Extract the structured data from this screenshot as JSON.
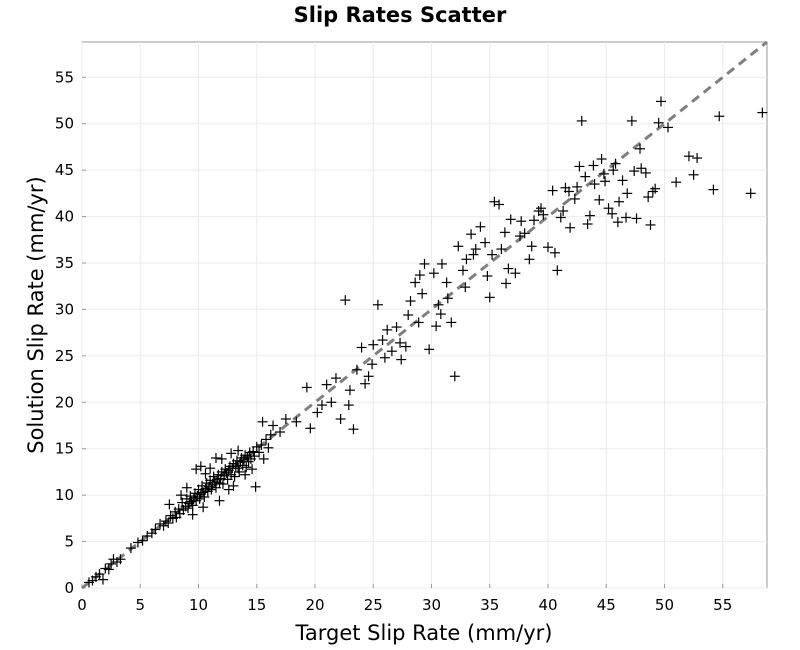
{
  "chart_data": {
    "type": "scatter",
    "title": "Slip Rates Scatter",
    "xlabel": "Target Slip Rate (mm/yr)",
    "ylabel": "Solution Slip Rate (mm/yr)",
    "xlim": [
      0,
      58.8
    ],
    "ylim": [
      0,
      58.8
    ],
    "xticks": [
      "0",
      "5",
      "10",
      "15",
      "20",
      "25",
      "30",
      "35",
      "40",
      "45",
      "50",
      "55"
    ],
    "yticks": [
      "0",
      "5",
      "10",
      "15",
      "20",
      "25",
      "30",
      "35",
      "40",
      "45",
      "50",
      "55"
    ],
    "grid": true,
    "marker": "plus",
    "marker_color": "#000000",
    "reference_line": {
      "style": "dashed",
      "color": "#7f7f7f",
      "from": [
        0,
        0
      ],
      "to": [
        58.8,
        58.8
      ]
    },
    "points": [
      [
        0.6,
        0.6
      ],
      [
        0.9,
        0.8
      ],
      [
        1.2,
        1.2
      ],
      [
        1.5,
        1.5
      ],
      [
        1.8,
        0.9
      ],
      [
        2.0,
        2.1
      ],
      [
        2.3,
        2.0
      ],
      [
        2.5,
        2.6
      ],
      [
        2.7,
        3.1
      ],
      [
        3.0,
        2.8
      ],
      [
        3.3,
        3.1
      ],
      [
        4.2,
        4.3
      ],
      [
        4.8,
        4.9
      ],
      [
        5.2,
        5.1
      ],
      [
        5.6,
        5.6
      ],
      [
        6.0,
        5.9
      ],
      [
        6.3,
        6.3
      ],
      [
        6.7,
        6.9
      ],
      [
        7.0,
        6.7
      ],
      [
        7.2,
        7.2
      ],
      [
        7.4,
        7.0
      ],
      [
        7.6,
        7.8
      ],
      [
        7.8,
        7.5
      ],
      [
        8.0,
        8.2
      ],
      [
        8.1,
        7.6
      ],
      [
        8.3,
        8.5
      ],
      [
        8.4,
        8.0
      ],
      [
        8.6,
        9.2
      ],
      [
        8.7,
        8.4
      ],
      [
        8.9,
        8.8
      ],
      [
        9.0,
        9.6
      ],
      [
        9.1,
        8.6
      ],
      [
        9.2,
        9.1
      ],
      [
        9.3,
        9.9
      ],
      [
        9.4,
        9.3
      ],
      [
        9.5,
        8.9
      ],
      [
        9.6,
        9.7
      ],
      [
        9.7,
        10.2
      ],
      [
        9.8,
        9.4
      ],
      [
        9.9,
        9.9
      ],
      [
        10.0,
        10.6
      ],
      [
        10.1,
        9.6
      ],
      [
        10.2,
        10.1
      ],
      [
        10.3,
        11.0
      ],
      [
        10.4,
        10.3
      ],
      [
        10.5,
        9.8
      ],
      [
        10.6,
        10.7
      ],
      [
        10.7,
        11.3
      ],
      [
        10.8,
        10.4
      ],
      [
        10.9,
        10.9
      ],
      [
        11.0,
        11.6
      ],
      [
        11.1,
        10.6
      ],
      [
        11.2,
        11.1
      ],
      [
        11.3,
        12.0
      ],
      [
        11.4,
        11.4
      ],
      [
        11.5,
        10.8
      ],
      [
        11.6,
        11.7
      ],
      [
        11.7,
        12.2
      ],
      [
        11.8,
        11.3
      ],
      [
        11.9,
        11.8
      ],
      [
        12.0,
        12.5
      ],
      [
        12.1,
        11.2
      ],
      [
        12.2,
        12.1
      ],
      [
        12.3,
        12.8
      ],
      [
        12.4,
        12.4
      ],
      [
        12.5,
        11.7
      ],
      [
        12.6,
        12.7
      ],
      [
        12.7,
        13.1
      ],
      [
        12.8,
        12.2
      ],
      [
        12.9,
        12.9
      ],
      [
        13.0,
        13.4
      ],
      [
        13.1,
        12.0
      ],
      [
        13.2,
        13.1
      ],
      [
        13.3,
        13.7
      ],
      [
        13.4,
        12.9
      ],
      [
        13.5,
        12.5
      ],
      [
        13.6,
        13.6
      ],
      [
        13.7,
        14.0
      ],
      [
        13.8,
        13.2
      ],
      [
        13.9,
        13.8
      ],
      [
        14.0,
        14.3
      ],
      [
        14.1,
        13.0
      ],
      [
        14.2,
        14.1
      ],
      [
        14.3,
        13.6
      ],
      [
        14.4,
        14.6
      ],
      [
        14.5,
        13.9
      ],
      [
        14.6,
        12.8
      ],
      [
        14.7,
        14.7
      ],
      [
        14.8,
        14.2
      ],
      [
        14.9,
        10.9
      ],
      [
        15.0,
        15.2
      ],
      [
        15.2,
        14.6
      ],
      [
        15.4,
        15.4
      ],
      [
        15.6,
        13.9
      ],
      [
        15.8,
        16.0
      ],
      [
        16.0,
        15.1
      ],
      [
        16.2,
        16.5
      ],
      [
        15.5,
        17.9
      ],
      [
        16.4,
        17.5
      ],
      [
        17.0,
        16.8
      ],
      [
        9.8,
        12.8
      ],
      [
        10.6,
        12.3
      ],
      [
        12.0,
        13.9
      ],
      [
        12.8,
        14.5
      ],
      [
        11.5,
        14.0
      ],
      [
        8.5,
        10.0
      ],
      [
        7.5,
        9.0
      ],
      [
        13.4,
        14.8
      ],
      [
        11.0,
        12.9
      ],
      [
        9.0,
        10.8
      ],
      [
        11.8,
        9.4
      ],
      [
        12.6,
        10.6
      ],
      [
        10.4,
        8.7
      ],
      [
        9.5,
        7.9
      ],
      [
        13.0,
        11.0
      ],
      [
        14.0,
        12.2
      ],
      [
        10.2,
        13.1
      ],
      [
        17.5,
        18.2
      ],
      [
        18.4,
        17.9
      ],
      [
        19.3,
        21.6
      ],
      [
        19.6,
        17.2
      ],
      [
        20.2,
        18.9
      ],
      [
        20.6,
        19.7
      ],
      [
        21.4,
        20.0
      ],
      [
        21.8,
        22.6
      ],
      [
        22.2,
        18.2
      ],
      [
        22.6,
        31.0
      ],
      [
        22.9,
        19.7
      ],
      [
        23.3,
        17.1
      ],
      [
        23.6,
        23.5
      ],
      [
        24.0,
        25.9
      ],
      [
        24.3,
        22.0
      ],
      [
        24.6,
        22.8
      ],
      [
        25.0,
        26.2
      ],
      [
        25.4,
        30.5
      ],
      [
        25.8,
        26.7
      ],
      [
        26.2,
        27.8
      ],
      [
        26.6,
        25.5
      ],
      [
        27.0,
        28.1
      ],
      [
        27.4,
        24.6
      ],
      [
        27.8,
        26.0
      ],
      [
        28.2,
        30.9
      ],
      [
        28.6,
        32.9
      ],
      [
        29.0,
        33.7
      ],
      [
        29.4,
        34.9
      ],
      [
        29.8,
        25.7
      ],
      [
        30.2,
        33.9
      ],
      [
        30.4,
        28.2
      ],
      [
        30.6,
        30.5
      ],
      [
        30.9,
        34.9
      ],
      [
        31.3,
        32.9
      ],
      [
        31.7,
        28.6
      ],
      [
        32.0,
        22.8
      ],
      [
        32.3,
        36.8
      ],
      [
        32.7,
        34.2
      ],
      [
        33.0,
        35.4
      ],
      [
        33.4,
        38.1
      ],
      [
        33.8,
        36.5
      ],
      [
        34.2,
        38.9
      ],
      [
        34.6,
        37.2
      ],
      [
        35.0,
        31.3
      ],
      [
        35.4,
        41.6
      ],
      [
        35.8,
        41.3
      ],
      [
        36.0,
        36.5
      ],
      [
        36.4,
        32.8
      ],
      [
        36.8,
        39.7
      ],
      [
        37.2,
        33.9
      ],
      [
        37.6,
        37.9
      ],
      [
        38.0,
        38.2
      ],
      [
        38.4,
        35.4
      ],
      [
        38.8,
        39.6
      ],
      [
        39.2,
        40.6
      ],
      [
        39.6,
        40.2
      ],
      [
        40.0,
        36.7
      ],
      [
        40.4,
        42.8
      ],
      [
        40.8,
        34.2
      ],
      [
        41.1,
        39.9
      ],
      [
        41.5,
        43.1
      ],
      [
        41.9,
        38.8
      ],
      [
        42.3,
        41.9
      ],
      [
        42.7,
        45.4
      ],
      [
        42.9,
        50.3
      ],
      [
        43.2,
        44.3
      ],
      [
        43.6,
        40.1
      ],
      [
        44.0,
        43.5
      ],
      [
        44.4,
        41.8
      ],
      [
        44.8,
        44.6
      ],
      [
        45.2,
        40.9
      ],
      [
        45.6,
        45.0
      ],
      [
        46.0,
        39.4
      ],
      [
        46.4,
        43.9
      ],
      [
        46.8,
        42.5
      ],
      [
        47.2,
        50.3
      ],
      [
        47.6,
        39.8
      ],
      [
        48.0,
        45.2
      ],
      [
        48.4,
        44.7
      ],
      [
        48.8,
        39.1
      ],
      [
        49.2,
        43.0
      ],
      [
        49.5,
        50.1
      ],
      [
        49.7,
        52.4
      ],
      [
        50.3,
        49.6
      ],
      [
        51.0,
        43.7
      ],
      [
        52.1,
        46.5
      ],
      [
        52.5,
        44.5
      ],
      [
        52.8,
        46.3
      ],
      [
        54.2,
        42.9
      ],
      [
        54.7,
        50.8
      ],
      [
        57.4,
        42.5
      ],
      [
        58.4,
        51.2
      ],
      [
        36.3,
        38.3
      ],
      [
        37.7,
        39.5
      ],
      [
        39.4,
        40.9
      ],
      [
        40.6,
        36.1
      ],
      [
        41.8,
        42.7
      ],
      [
        43.4,
        39.2
      ],
      [
        44.9,
        43.8
      ],
      [
        46.1,
        41.6
      ],
      [
        47.4,
        44.9
      ],
      [
        48.6,
        42.1
      ],
      [
        33.6,
        35.9
      ],
      [
        34.8,
        33.6
      ],
      [
        31.4,
        31.2
      ],
      [
        28.9,
        28.6
      ],
      [
        27.3,
        26.4
      ],
      [
        26.0,
        24.8
      ],
      [
        24.9,
        24.1
      ],
      [
        23.0,
        21.3
      ],
      [
        21.0,
        21.9
      ],
      [
        45.5,
        40.3
      ],
      [
        46.7,
        39.9
      ],
      [
        43.9,
        45.5
      ],
      [
        42.5,
        43.2
      ],
      [
        44.6,
        46.2
      ],
      [
        49.0,
        42.7
      ],
      [
        47.9,
        47.3
      ],
      [
        45.8,
        45.7
      ],
      [
        41.3,
        40.6
      ],
      [
        38.6,
        36.8
      ],
      [
        36.6,
        34.4
      ],
      [
        35.2,
        35.9
      ],
      [
        32.9,
        32.4
      ],
      [
        30.8,
        29.5
      ],
      [
        29.2,
        31.7
      ],
      [
        28.0,
        29.4
      ]
    ]
  }
}
